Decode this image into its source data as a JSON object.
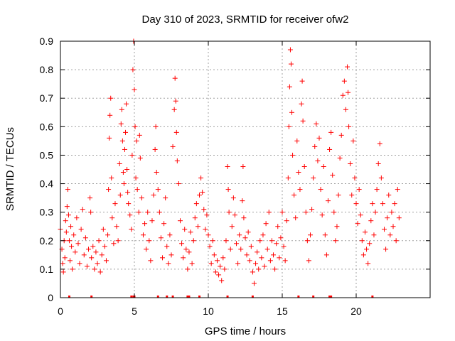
{
  "chart_data": {
    "type": "scatter",
    "title": "Day 310 of 2023, SRMTID for receiver ofw2",
    "xlabel": "GPS time / hours",
    "ylabel": "SRMTID / TECUs",
    "xlim": [
      0,
      25
    ],
    "ylim": [
      0,
      0.9
    ],
    "xticks": [
      0,
      5,
      10,
      15,
      20
    ],
    "xtick_labels": [
      "0",
      "5",
      "10",
      "15",
      "20"
    ],
    "yticks": [
      0,
      0.1,
      0.2,
      0.3,
      0.4,
      0.5,
      0.6,
      0.7,
      0.8,
      0.9
    ],
    "ytick_labels": [
      "0",
      "0.1",
      "0.2",
      "0.3",
      "0.4",
      "0.5",
      "0.6",
      "0.7",
      "0.8",
      "0.9"
    ],
    "grid": true,
    "marker": "+",
    "color": "#ff0000",
    "series": [
      {
        "name": "SRMTID",
        "points": [
          [
            0.0,
            0.24
          ],
          [
            0.1,
            0.17
          ],
          [
            0.15,
            0.12
          ],
          [
            0.2,
            0.09
          ],
          [
            0.25,
            0.2
          ],
          [
            0.3,
            0.14
          ],
          [
            0.35,
            0.27
          ],
          [
            0.4,
            0.23
          ],
          [
            0.45,
            0.32
          ],
          [
            0.5,
            0.38
          ],
          [
            0.55,
            0.29
          ],
          [
            0.6,
            0.2
          ],
          [
            0.65,
            0.13
          ],
          [
            0.7,
            0.25
          ],
          [
            0.75,
            0.18
          ],
          [
            0.8,
            0.1
          ],
          [
            0.9,
            0.22
          ],
          [
            1.0,
            0.16
          ],
          [
            1.1,
            0.28
          ],
          [
            1.2,
            0.19
          ],
          [
            1.3,
            0.12
          ],
          [
            1.4,
            0.24
          ],
          [
            1.5,
            0.31
          ],
          [
            1.6,
            0.15
          ],
          [
            1.7,
            0.21
          ],
          [
            1.8,
            0.11
          ],
          [
            1.9,
            0.17
          ],
          [
            2.0,
            0.35
          ],
          [
            2.05,
            0.3
          ],
          [
            2.1,
            0.14
          ],
          [
            2.2,
            0.18
          ],
          [
            2.3,
            0.1
          ],
          [
            2.4,
            0.16
          ],
          [
            2.5,
            0.12
          ],
          [
            2.6,
            0.2
          ],
          [
            2.7,
            0.09
          ],
          [
            2.8,
            0.15
          ],
          [
            2.9,
            0.24
          ],
          [
            3.0,
            0.18
          ],
          [
            3.1,
            0.13
          ],
          [
            3.2,
            0.22
          ],
          [
            3.25,
            0.38
          ],
          [
            3.3,
            0.56
          ],
          [
            3.35,
            0.64
          ],
          [
            3.4,
            0.7
          ],
          [
            3.45,
            0.42
          ],
          [
            3.5,
            0.28
          ],
          [
            3.6,
            0.19
          ],
          [
            3.7,
            0.33
          ],
          [
            3.8,
            0.25
          ],
          [
            3.9,
            0.2
          ],
          [
            4.0,
            0.47
          ],
          [
            4.05,
            0.36
          ],
          [
            4.1,
            0.61
          ],
          [
            4.15,
            0.66
          ],
          [
            4.2,
            0.55
          ],
          [
            4.25,
            0.44
          ],
          [
            4.3,
            0.4
          ],
          [
            4.35,
            0.52
          ],
          [
            4.4,
            0.58
          ],
          [
            4.45,
            0.68
          ],
          [
            4.5,
            0.45
          ],
          [
            4.55,
            0.37
          ],
          [
            4.6,
            0.33
          ],
          [
            4.7,
            0.29
          ],
          [
            4.8,
            0.24
          ],
          [
            4.85,
            0.5
          ],
          [
            4.9,
            0.8
          ],
          [
            4.95,
            0.9
          ],
          [
            5.0,
            0.73
          ],
          [
            5.05,
            0.6
          ],
          [
            5.1,
            0.42
          ],
          [
            5.15,
            0.55
          ],
          [
            5.2,
            0.38
          ],
          [
            5.3,
            0.3
          ],
          [
            5.35,
            0.57
          ],
          [
            5.4,
            0.49
          ],
          [
            5.5,
            0.35
          ],
          [
            5.6,
            0.22
          ],
          [
            5.7,
            0.26
          ],
          [
            5.8,
            0.17
          ],
          [
            5.9,
            0.3
          ],
          [
            6.0,
            0.2
          ],
          [
            6.1,
            0.13
          ],
          [
            6.2,
            0.27
          ],
          [
            6.3,
            0.36
          ],
          [
            6.4,
            0.52
          ],
          [
            6.45,
            0.6
          ],
          [
            6.5,
            0.44
          ],
          [
            6.6,
            0.38
          ],
          [
            6.7,
            0.3
          ],
          [
            6.8,
            0.21
          ],
          [
            6.9,
            0.14
          ],
          [
            7.0,
            0.26
          ],
          [
            7.1,
            0.35
          ],
          [
            7.2,
            0.18
          ],
          [
            7.3,
            0.12
          ],
          [
            7.4,
            0.22
          ],
          [
            7.5,
            0.15
          ],
          [
            7.6,
            0.53
          ],
          [
            7.7,
            0.66
          ],
          [
            7.75,
            0.77
          ],
          [
            7.8,
            0.69
          ],
          [
            7.85,
            0.58
          ],
          [
            7.9,
            0.48
          ],
          [
            8.0,
            0.4
          ],
          [
            8.1,
            0.27
          ],
          [
            8.2,
            0.19
          ],
          [
            8.3,
            0.14
          ],
          [
            8.4,
            0.24
          ],
          [
            8.5,
            0.17
          ],
          [
            8.6,
            0.1
          ],
          [
            8.7,
            0.16
          ],
          [
            8.8,
            0.23
          ],
          [
            8.9,
            0.12
          ],
          [
            9.0,
            0.2
          ],
          [
            9.1,
            0.28
          ],
          [
            9.2,
            0.33
          ],
          [
            9.3,
            0.25
          ],
          [
            9.4,
            0.36
          ],
          [
            9.5,
            0.42
          ],
          [
            9.6,
            0.37
          ],
          [
            9.7,
            0.31
          ],
          [
            9.8,
            0.24
          ],
          [
            9.9,
            0.29
          ],
          [
            10.0,
            0.22
          ],
          [
            10.1,
            0.18
          ],
          [
            10.2,
            0.12
          ],
          [
            10.3,
            0.2
          ],
          [
            10.4,
            0.15
          ],
          [
            10.5,
            0.09
          ],
          [
            10.6,
            0.13
          ],
          [
            10.7,
            0.08
          ],
          [
            10.8,
            0.11
          ],
          [
            10.9,
            0.06
          ],
          [
            11.0,
            0.14
          ],
          [
            11.1,
            0.1
          ],
          [
            11.2,
            0.2
          ],
          [
            11.3,
            0.46
          ],
          [
            11.35,
            0.38
          ],
          [
            11.4,
            0.3
          ],
          [
            11.5,
            0.17
          ],
          [
            11.6,
            0.25
          ],
          [
            11.7,
            0.35
          ],
          [
            11.8,
            0.29
          ],
          [
            11.9,
            0.19
          ],
          [
            12.0,
            0.12
          ],
          [
            12.1,
            0.22
          ],
          [
            12.2,
            0.17
          ],
          [
            12.3,
            0.34
          ],
          [
            12.35,
            0.46
          ],
          [
            12.4,
            0.28
          ],
          [
            12.5,
            0.21
          ],
          [
            12.6,
            0.15
          ],
          [
            12.7,
            0.23
          ],
          [
            12.8,
            0.13
          ],
          [
            12.9,
            0.18
          ],
          [
            13.0,
            0.09
          ],
          [
            13.1,
            0.05
          ],
          [
            13.2,
            0.12
          ],
          [
            13.3,
            0.16
          ],
          [
            13.4,
            0.1
          ],
          [
            13.5,
            0.2
          ],
          [
            13.6,
            0.14
          ],
          [
            13.7,
            0.22
          ],
          [
            13.8,
            0.11
          ],
          [
            13.9,
            0.26
          ],
          [
            14.0,
            0.17
          ],
          [
            14.1,
            0.3
          ],
          [
            14.2,
            0.13
          ],
          [
            14.3,
            0.2
          ],
          [
            14.4,
            0.15
          ],
          [
            14.5,
            0.1
          ],
          [
            14.6,
            0.19
          ],
          [
            14.7,
            0.25
          ],
          [
            14.8,
            0.14
          ],
          [
            14.9,
            0.21
          ],
          [
            15.0,
            0.3
          ],
          [
            15.1,
            0.18
          ],
          [
            15.2,
            0.13
          ],
          [
            15.3,
            0.27
          ],
          [
            15.4,
            0.42
          ],
          [
            15.45,
            0.6
          ],
          [
            15.5,
            0.74
          ],
          [
            15.55,
            0.87
          ],
          [
            15.6,
            0.82
          ],
          [
            15.65,
            0.65
          ],
          [
            15.7,
            0.5
          ],
          [
            15.8,
            0.36
          ],
          [
            15.9,
            0.28
          ],
          [
            16.0,
            0.55
          ],
          [
            16.1,
            0.44
          ],
          [
            16.2,
            0.38
          ],
          [
            16.3,
            0.68
          ],
          [
            16.35,
            0.76
          ],
          [
            16.4,
            0.62
          ],
          [
            16.5,
            0.46
          ],
          [
            16.6,
            0.3
          ],
          [
            16.7,
            0.2
          ],
          [
            16.8,
            0.13
          ],
          [
            16.9,
            0.22
          ],
          [
            17.0,
            0.31
          ],
          [
            17.1,
            0.42
          ],
          [
            17.2,
            0.53
          ],
          [
            17.3,
            0.61
          ],
          [
            17.4,
            0.48
          ],
          [
            17.5,
            0.56
          ],
          [
            17.6,
            0.38
          ],
          [
            17.7,
            0.29
          ],
          [
            17.8,
            0.46
          ],
          [
            17.9,
            0.22
          ],
          [
            18.0,
            0.15
          ],
          [
            18.1,
            0.34
          ],
          [
            18.2,
            0.52
          ],
          [
            18.3,
            0.58
          ],
          [
            18.4,
            0.43
          ],
          [
            18.5,
            0.3
          ],
          [
            18.6,
            0.2
          ],
          [
            18.7,
            0.25
          ],
          [
            18.8,
            0.36
          ],
          [
            18.9,
            0.49
          ],
          [
            19.0,
            0.57
          ],
          [
            19.1,
            0.71
          ],
          [
            19.2,
            0.76
          ],
          [
            19.3,
            0.66
          ],
          [
            19.4,
            0.81
          ],
          [
            19.45,
            0.72
          ],
          [
            19.5,
            0.6
          ],
          [
            19.6,
            0.47
          ],
          [
            19.7,
            0.36
          ],
          [
            19.8,
            0.55
          ],
          [
            19.9,
            0.42
          ],
          [
            20.0,
            0.33
          ],
          [
            20.1,
            0.26
          ],
          [
            20.2,
            0.38
          ],
          [
            20.3,
            0.29
          ],
          [
            20.4,
            0.2
          ],
          [
            20.5,
            0.15
          ],
          [
            20.6,
            0.23
          ],
          [
            20.7,
            0.17
          ],
          [
            20.8,
            0.12
          ],
          [
            20.9,
            0.19
          ],
          [
            21.0,
            0.27
          ],
          [
            21.1,
            0.33
          ],
          [
            21.2,
            0.22
          ],
          [
            21.3,
            0.3
          ],
          [
            21.4,
            0.38
          ],
          [
            21.5,
            0.47
          ],
          [
            21.6,
            0.54
          ],
          [
            21.7,
            0.42
          ],
          [
            21.8,
            0.33
          ],
          [
            21.9,
            0.24
          ],
          [
            22.0,
            0.17
          ],
          [
            22.1,
            0.28
          ],
          [
            22.2,
            0.36
          ],
          [
            22.3,
            0.22
          ],
          [
            22.4,
            0.3
          ],
          [
            22.5,
            0.25
          ],
          [
            22.6,
            0.33
          ],
          [
            22.7,
            0.2
          ],
          [
            22.8,
            0.38
          ],
          [
            22.9,
            0.28
          ]
        ]
      }
    ],
    "baseline_markers": {
      "name": "zero markers",
      "x": [
        0.6,
        2.1,
        4.8,
        4.95,
        5.0,
        6.6,
        7.2,
        7.6,
        8.6,
        8.7,
        9.4,
        11.3,
        13.0,
        16.1,
        17.1,
        18.2,
        18.3,
        21.1
      ]
    }
  }
}
